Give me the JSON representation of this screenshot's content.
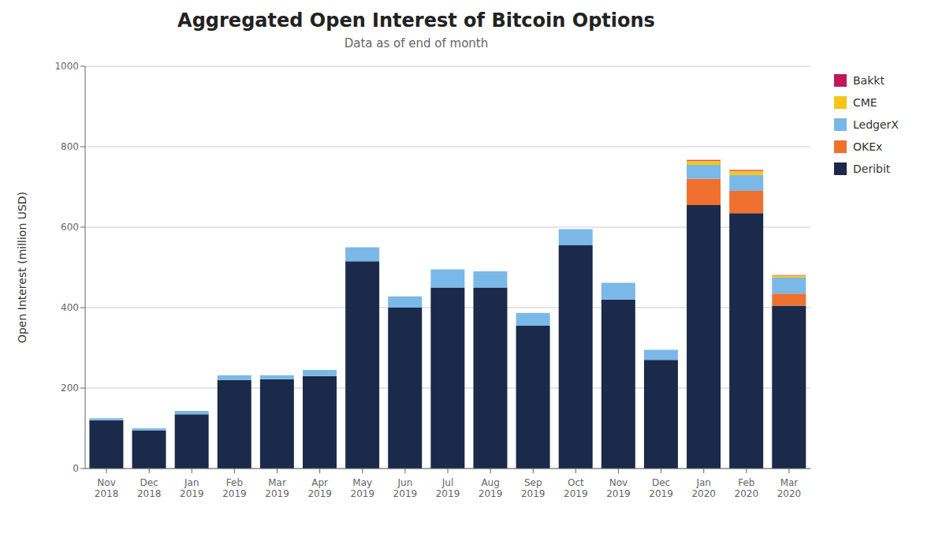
{
  "chart_data": {
    "type": "bar",
    "title": "Aggregated Open Interest of Bitcoin Options",
    "subtitle": "Data as of end of month",
    "ylabel": "Open Interest (million USD)",
    "categories": [
      "Nov\n2018",
      "Dec\n2018",
      "Jan\n2019",
      "Feb\n2019",
      "Mar\n2019",
      "Apr\n2019",
      "May\n2019",
      "Jun\n2019",
      "Jul\n2019",
      "Aug\n2019",
      "Sep\n2019",
      "Oct\n2019",
      "Nov\n2019",
      "Dec\n2019",
      "Jan\n2020",
      "Feb\n2020",
      "Mar\n2020"
    ],
    "series": [
      {
        "name": "Deribit",
        "color": "#1b2a4a",
        "values": [
          120,
          95,
          135,
          220,
          222,
          230,
          515,
          400,
          450,
          450,
          355,
          555,
          420,
          270,
          655,
          635,
          405
        ]
      },
      {
        "name": "OKEx",
        "color": "#f07030",
        "values": [
          0,
          0,
          0,
          0,
          0,
          0,
          0,
          0,
          0,
          0,
          0,
          0,
          0,
          0,
          65,
          55,
          30
        ]
      },
      {
        "name": "LedgerX",
        "color": "#7ab8e8",
        "values": [
          5,
          5,
          8,
          12,
          10,
          15,
          35,
          28,
          45,
          40,
          32,
          40,
          42,
          25,
          35,
          40,
          40
        ]
      },
      {
        "name": "CME",
        "color": "#f5c518",
        "values": [
          0,
          0,
          0,
          0,
          0,
          0,
          0,
          0,
          0,
          0,
          0,
          0,
          0,
          0,
          10,
          10,
          5
        ]
      },
      {
        "name": "Bakkt",
        "color": "#c0175c",
        "values": [
          0,
          0,
          0,
          0,
          0,
          0,
          0,
          0,
          0,
          0,
          0,
          0,
          0,
          0,
          2,
          2,
          1
        ]
      }
    ],
    "ylim": [
      0,
      1000
    ],
    "yticks": [
      0,
      200,
      400,
      600,
      800,
      1000
    ],
    "stacked": true,
    "grid": true,
    "legend": "right"
  }
}
